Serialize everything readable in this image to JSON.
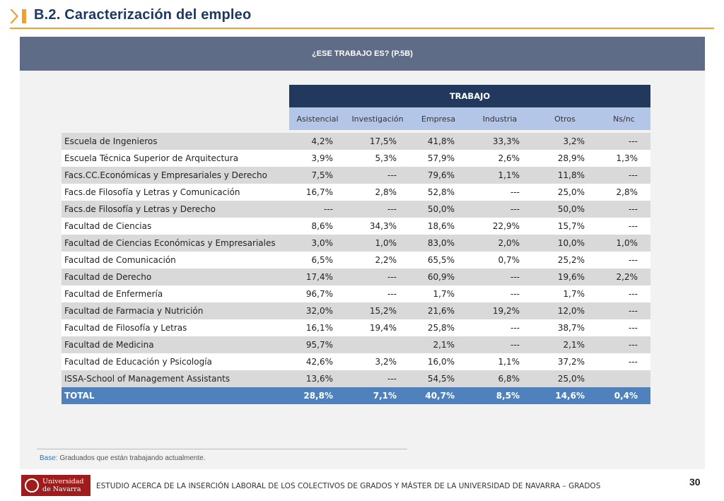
{
  "header": {
    "title": "B.2. Caracterización del empleo"
  },
  "panel": {
    "question": "¿ESE TRABAJO ES? (P.5B)"
  },
  "table": {
    "group_header": "TRABAJO",
    "columns": [
      "Asistencial",
      "Investigación",
      "Empresa",
      "Industria",
      "Otros",
      "Ns/nc"
    ],
    "rows": [
      {
        "name": "Escuela de Ingenieros",
        "values": [
          "4,2%",
          "17,5%",
          "41,8%",
          "33,3%",
          "3,2%",
          "---"
        ]
      },
      {
        "name": "Escuela Técnica Superior de Arquitectura",
        "values": [
          "3,9%",
          "5,3%",
          "57,9%",
          "2,6%",
          "28,9%",
          "1,3%"
        ]
      },
      {
        "name": "Facs.CC.Económicas y Empresariales y Derecho",
        "values": [
          "7,5%",
          "---",
          "79,6%",
          "1,1%",
          "11,8%",
          "---"
        ]
      },
      {
        "name": "Facs.de Filosofía y Letras y Comunicación",
        "values": [
          "16,7%",
          "2,8%",
          "52,8%",
          "---",
          "25,0%",
          "2,8%"
        ]
      },
      {
        "name": "Facs.de Filosofía y Letras y Derecho",
        "values": [
          "---",
          "---",
          "50,0%",
          "---",
          "50,0%",
          "---"
        ]
      },
      {
        "name": "Facultad de Ciencias",
        "values": [
          "8,6%",
          "34,3%",
          "18,6%",
          "22,9%",
          "15,7%",
          "---"
        ]
      },
      {
        "name": "Facultad de Ciencias Económicas y Empresariales",
        "values": [
          "3,0%",
          "1,0%",
          "83,0%",
          "2,0%",
          "10,0%",
          "1,0%"
        ]
      },
      {
        "name": "Facultad de Comunicación",
        "values": [
          "6,5%",
          "2,2%",
          "65,5%",
          "0,7%",
          "25,2%",
          "---"
        ]
      },
      {
        "name": "Facultad de Derecho",
        "values": [
          "17,4%",
          "---",
          "60,9%",
          "---",
          "19,6%",
          "2,2%"
        ]
      },
      {
        "name": "Facultad de Enfermería",
        "values": [
          "96,7%",
          "---",
          "1,7%",
          "---",
          "1,7%",
          "---"
        ]
      },
      {
        "name": "Facultad de Farmacia y Nutrición",
        "values": [
          "32,0%",
          "15,2%",
          "21,6%",
          "19,2%",
          "12,0%",
          "---"
        ]
      },
      {
        "name": "Facultad de Filosofía y Letras",
        "values": [
          "16,1%",
          "19,4%",
          "25,8%",
          "---",
          "38,7%",
          "---"
        ]
      },
      {
        "name": "Facultad de Medicina",
        "values": [
          "95,7%",
          "",
          "2,1%",
          "---",
          "2,1%",
          "---"
        ]
      },
      {
        "name": "Facultad de Educación y Psicología",
        "values": [
          "42,6%",
          "3,2%",
          "16,0%",
          "1,1%",
          "37,2%",
          "---"
        ]
      },
      {
        "name": "ISSA-School of Management Assistants",
        "values": [
          "13,6%",
          "---",
          "54,5%",
          "6,8%",
          "25,0%",
          ""
        ]
      }
    ],
    "total": {
      "name": "TOTAL",
      "values": [
        "28,8%",
        "7,1%",
        "40,7%",
        "8,5%",
        "14,6%",
        "0,4%"
      ]
    }
  },
  "base_note": {
    "label": "Base:",
    "text": "Graduados que están trabajando actualmente."
  },
  "footer": {
    "logo_line1": "Universidad",
    "logo_line2": "de Navarra",
    "text": "ESTUDIO ACERCA DE LA INSERCIÓN LABORAL DE LOS COLECTIVOS DE GRADOS Y MÁSTER DE LA UNIVERSIDAD DE NAVARRA – GRADOS",
    "page_number": "30"
  },
  "colors": {
    "accent": "#f0a030",
    "title": "#1e3864",
    "panel_header": "#5e6c87",
    "table_header": "#22385c",
    "total_row": "#4f81bd"
  }
}
